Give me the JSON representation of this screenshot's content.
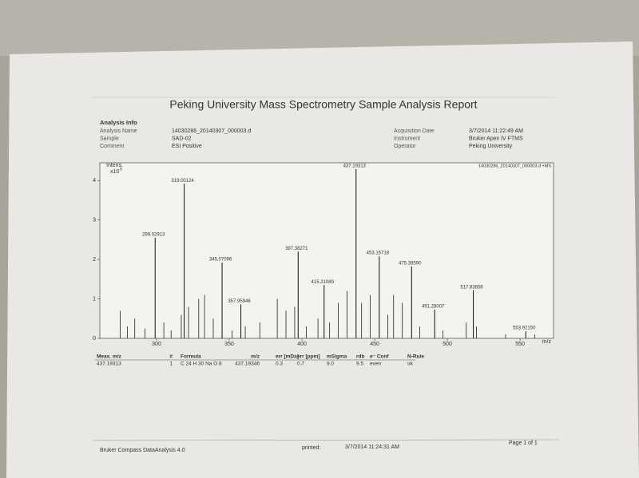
{
  "header": {
    "title": "Peking University Mass Spectrometry Sample Analysis Report"
  },
  "analysis_info": {
    "heading": "Analysis Info",
    "left": [
      {
        "label": "Analysis Name",
        "value": "14030286_20140307_000003.d"
      },
      {
        "label": "Sample",
        "value": "SAD-02"
      },
      {
        "label": "Comment",
        "value": "ESI Positive"
      }
    ],
    "right": [
      {
        "label": "Acquisition Date",
        "value": "3/7/2014 11:22:49 AM"
      },
      {
        "label": "Instrument",
        "value": "Bruker Apex IV FTMS"
      },
      {
        "label": "Operator",
        "value": "Peking University"
      }
    ]
  },
  "chart_data": {
    "type": "stick",
    "title": "14030286_20140307_000003.d +MS",
    "y_label": "Intens.",
    "y_unit": "x10",
    "y_unit_exp": "6",
    "x_label": "m/z",
    "x": [
      299.02913,
      319.00124,
      345.07096,
      357.95946,
      397.38271,
      415.21089,
      437.19313,
      453.16718,
      475.3959,
      491.28007,
      517.83656,
      553.9215
    ],
    "values": [
      2.55,
      3.92,
      1.92,
      0.86,
      2.2,
      1.35,
      4.29,
      2.08,
      1.82,
      0.73,
      1.22,
      0.18
    ],
    "value_labels": [
      "299.02913",
      "319.00124",
      "345.07096",
      "357.95946",
      "397.38271",
      "415.21089",
      "437.19313",
      "453.16718",
      "475.39590",
      "491.28007",
      "517.83656",
      "553.92150"
    ],
    "minor_x": [
      275,
      280,
      285,
      292,
      305,
      310,
      317,
      322,
      329,
      333,
      339,
      352,
      361,
      371,
      383,
      389,
      395,
      403,
      411,
      419,
      425,
      431,
      441,
      447,
      459,
      463,
      469,
      481,
      497,
      513,
      520,
      540,
      560
    ],
    "minor_values": [
      0.7,
      0.3,
      0.5,
      0.25,
      0.4,
      0.2,
      0.6,
      0.8,
      1.0,
      1.1,
      0.5,
      0.2,
      0.3,
      0.4,
      1.0,
      0.7,
      0.8,
      0.3,
      0.5,
      0.4,
      0.9,
      1.2,
      0.9,
      1.1,
      0.6,
      1.1,
      0.9,
      0.3,
      0.2,
      0.4,
      0.3,
      0.1,
      0.1
    ],
    "color": "#222222",
    "xlim": [
      261,
      573
    ],
    "ylim": [
      0,
      4.45
    ],
    "xticks": [
      300,
      350,
      400,
      450,
      500,
      550
    ],
    "yticks": [
      0,
      1,
      2,
      3,
      4
    ]
  },
  "table": {
    "columns": [
      "Meas. m/z",
      "#",
      "Formula",
      "m/z",
      "err [mDa]",
      "err [ppm]",
      "mSigma",
      "rdb",
      "e⁻ Conf",
      "N-Rule"
    ],
    "rows": [
      [
        "437.19313",
        "1",
        "C 24 H 30 Na O 8",
        "437.19346",
        "0.3",
        "0.7",
        "9.0",
        "9.5",
        "even",
        "ok"
      ]
    ]
  },
  "footer": {
    "software": "Bruker Compass DataAnalysis 4.0",
    "printed_label": "printed:",
    "printed_date": "3/7/2014 11:24:31 AM",
    "page": "Page 1 of 1"
  }
}
